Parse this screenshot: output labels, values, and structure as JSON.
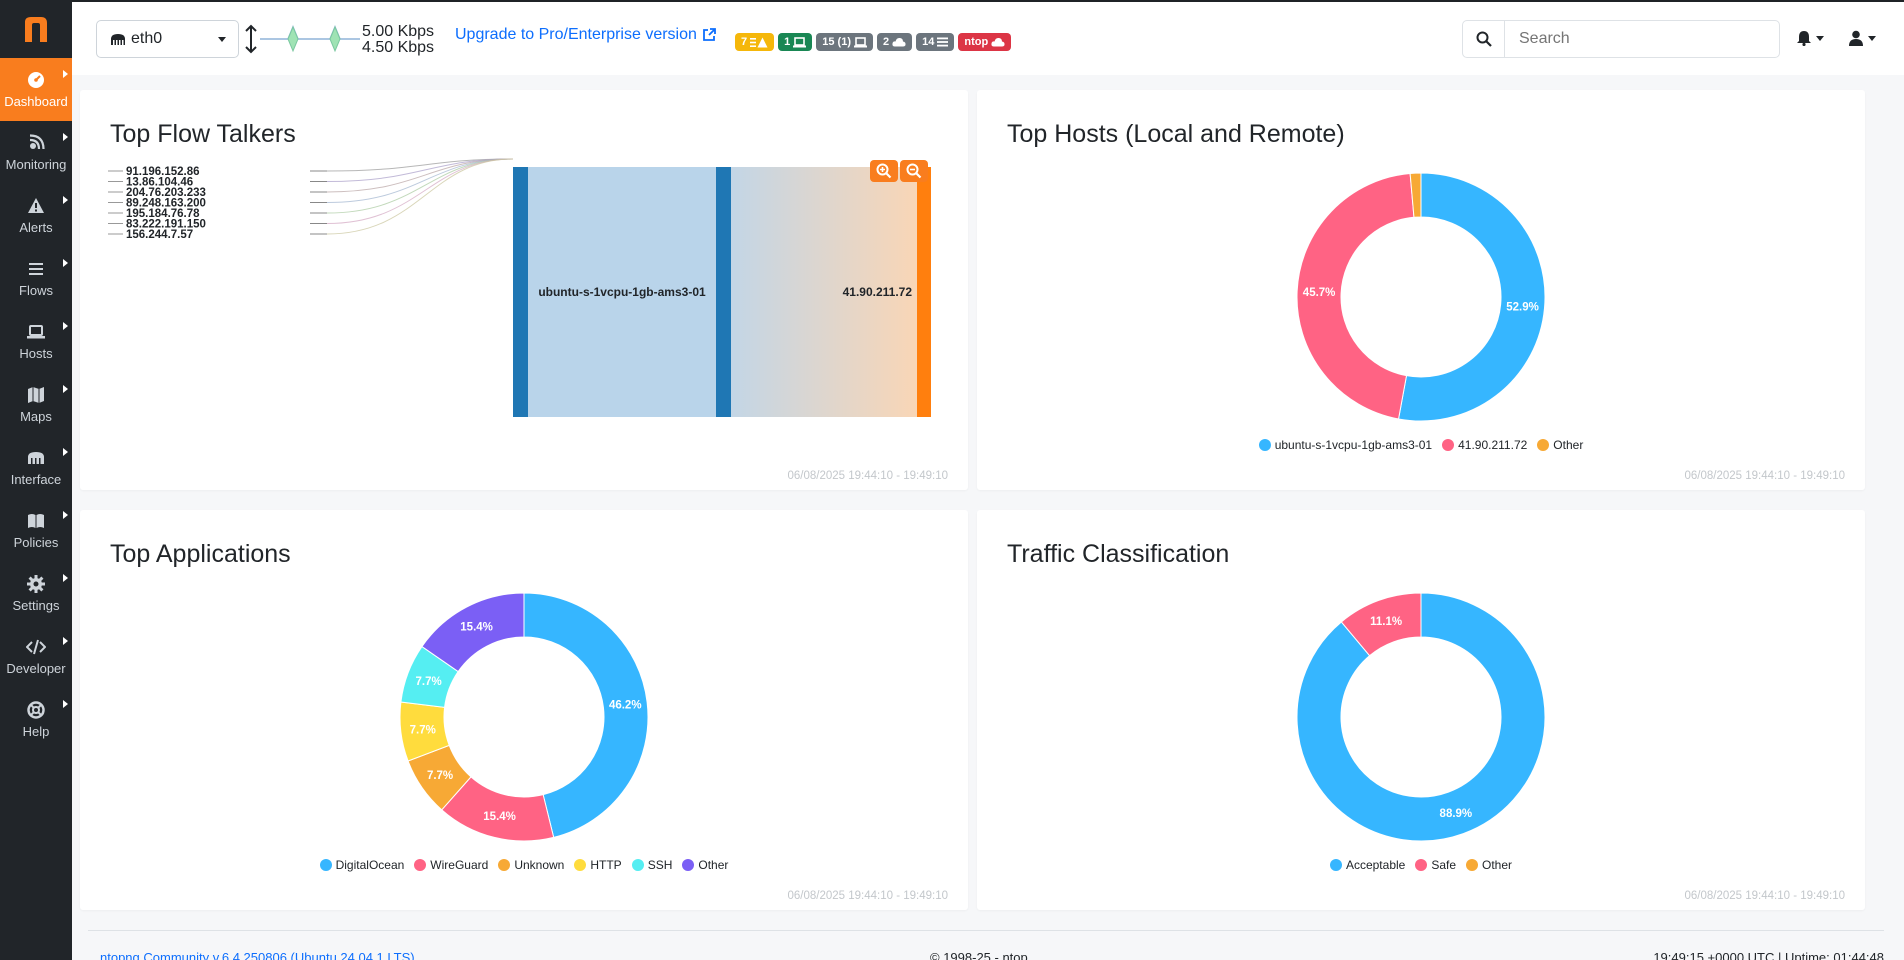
{
  "sidebar": {
    "items": [
      {
        "label": "Dashboard",
        "icon": "dashboard-icon",
        "active": true
      },
      {
        "label": "Monitoring",
        "icon": "monitoring-icon"
      },
      {
        "label": "Alerts",
        "icon": "alerts-icon"
      },
      {
        "label": "Flows",
        "icon": "flows-icon"
      },
      {
        "label": "Hosts",
        "icon": "hosts-icon"
      },
      {
        "label": "Maps",
        "icon": "maps-icon"
      },
      {
        "label": "Interface",
        "icon": "interface-icon"
      },
      {
        "label": "Policies",
        "icon": "policies-icon"
      },
      {
        "label": "Settings",
        "icon": "settings-icon"
      },
      {
        "label": "Developer",
        "icon": "developer-icon"
      },
      {
        "label": "Help",
        "icon": "help-icon"
      }
    ]
  },
  "topbar": {
    "interface": "eth0",
    "rate_up": "5.00 Kbps",
    "rate_down": "4.50 Kbps",
    "upgrade_text": "Upgrade to Pro/Enterprise version",
    "badges": [
      {
        "text": "7",
        "icon": "alert-list-icon",
        "color": "#f5b70a"
      },
      {
        "text": "1",
        "icon": "laptop-icon",
        "color": "#198754"
      },
      {
        "text": "15 (1)",
        "icon": "laptop-icon",
        "color": "#6c757d"
      },
      {
        "text": "2",
        "icon": "cloud-icon",
        "color": "#6c757d"
      },
      {
        "text": "14",
        "icon": "list-icon",
        "color": "#6c757d"
      },
      {
        "text": "ntop",
        "icon": "cloud-icon",
        "color": "#dc3545"
      }
    ],
    "search_placeholder": "Search"
  },
  "cards": {
    "flow_talkers": {
      "title": "Top Flow Talkers",
      "time": "06/08/2025 19:44:10 - 19:49:10"
    },
    "top_hosts": {
      "title": "Top Hosts (Local and Remote)",
      "time": "06/08/2025 19:44:10 - 19:49:10"
    },
    "top_apps": {
      "title": "Top Applications",
      "time": "06/08/2025 19:44:10 - 19:49:10"
    },
    "traffic_class": {
      "title": "Traffic Classification",
      "time": "06/08/2025 19:44:10 - 19:49:10"
    }
  },
  "footer": {
    "version": "ntopng Community v.6.4.250806 (Ubuntu 24.04.1 LTS)",
    "copyright": "© 1998-25 - ntop",
    "uptime": "19:49:15 +0000 UTC | Uptime: 01:44:48"
  },
  "chart_data": [
    {
      "type": "sankey",
      "title": "Top Flow Talkers",
      "sources": [
        "91.196.152.86",
        "13.86.104.46",
        "204.76.203.233",
        "89.248.163.200",
        "195.184.76.78",
        "83.222.191.150",
        "156.244.7.57"
      ],
      "middle": "ubuntu-s-1vcpu-1gb-ams3-01",
      "target": "41.90.211.72"
    },
    {
      "type": "pie",
      "title": "Top Hosts (Local and Remote)",
      "labels": [
        "ubuntu-s-1vcpu-1gb-ams3-01",
        "41.90.211.72",
        "Other"
      ],
      "values": [
        52.9,
        45.7,
        1.4
      ],
      "value_labels": [
        "52.9%",
        "45.7%",
        ""
      ],
      "colors": [
        "#36b6ff",
        "#ff6384",
        "#f7a935"
      ]
    },
    {
      "type": "pie",
      "title": "Top Applications",
      "labels": [
        "DigitalOcean",
        "WireGuard",
        "Unknown",
        "HTTP",
        "SSH",
        "Other"
      ],
      "values": [
        46.2,
        15.4,
        7.7,
        7.7,
        7.7,
        15.4
      ],
      "value_labels": [
        "46.2%",
        "15.4%",
        "7.7%",
        "7.7%",
        "7.7%",
        "15.4%"
      ],
      "colors": [
        "#36b6ff",
        "#ff6384",
        "#f7a935",
        "#ffdc3d",
        "#55eef2",
        "#7b5ff5"
      ]
    },
    {
      "type": "pie",
      "title": "Traffic Classification",
      "labels": [
        "Acceptable",
        "Safe",
        "Other"
      ],
      "values": [
        88.9,
        11.1,
        0
      ],
      "value_labels": [
        "88.9%",
        "11.1%",
        ""
      ],
      "colors": [
        "#36b6ff",
        "#ff6384",
        "#f7a935"
      ]
    }
  ]
}
